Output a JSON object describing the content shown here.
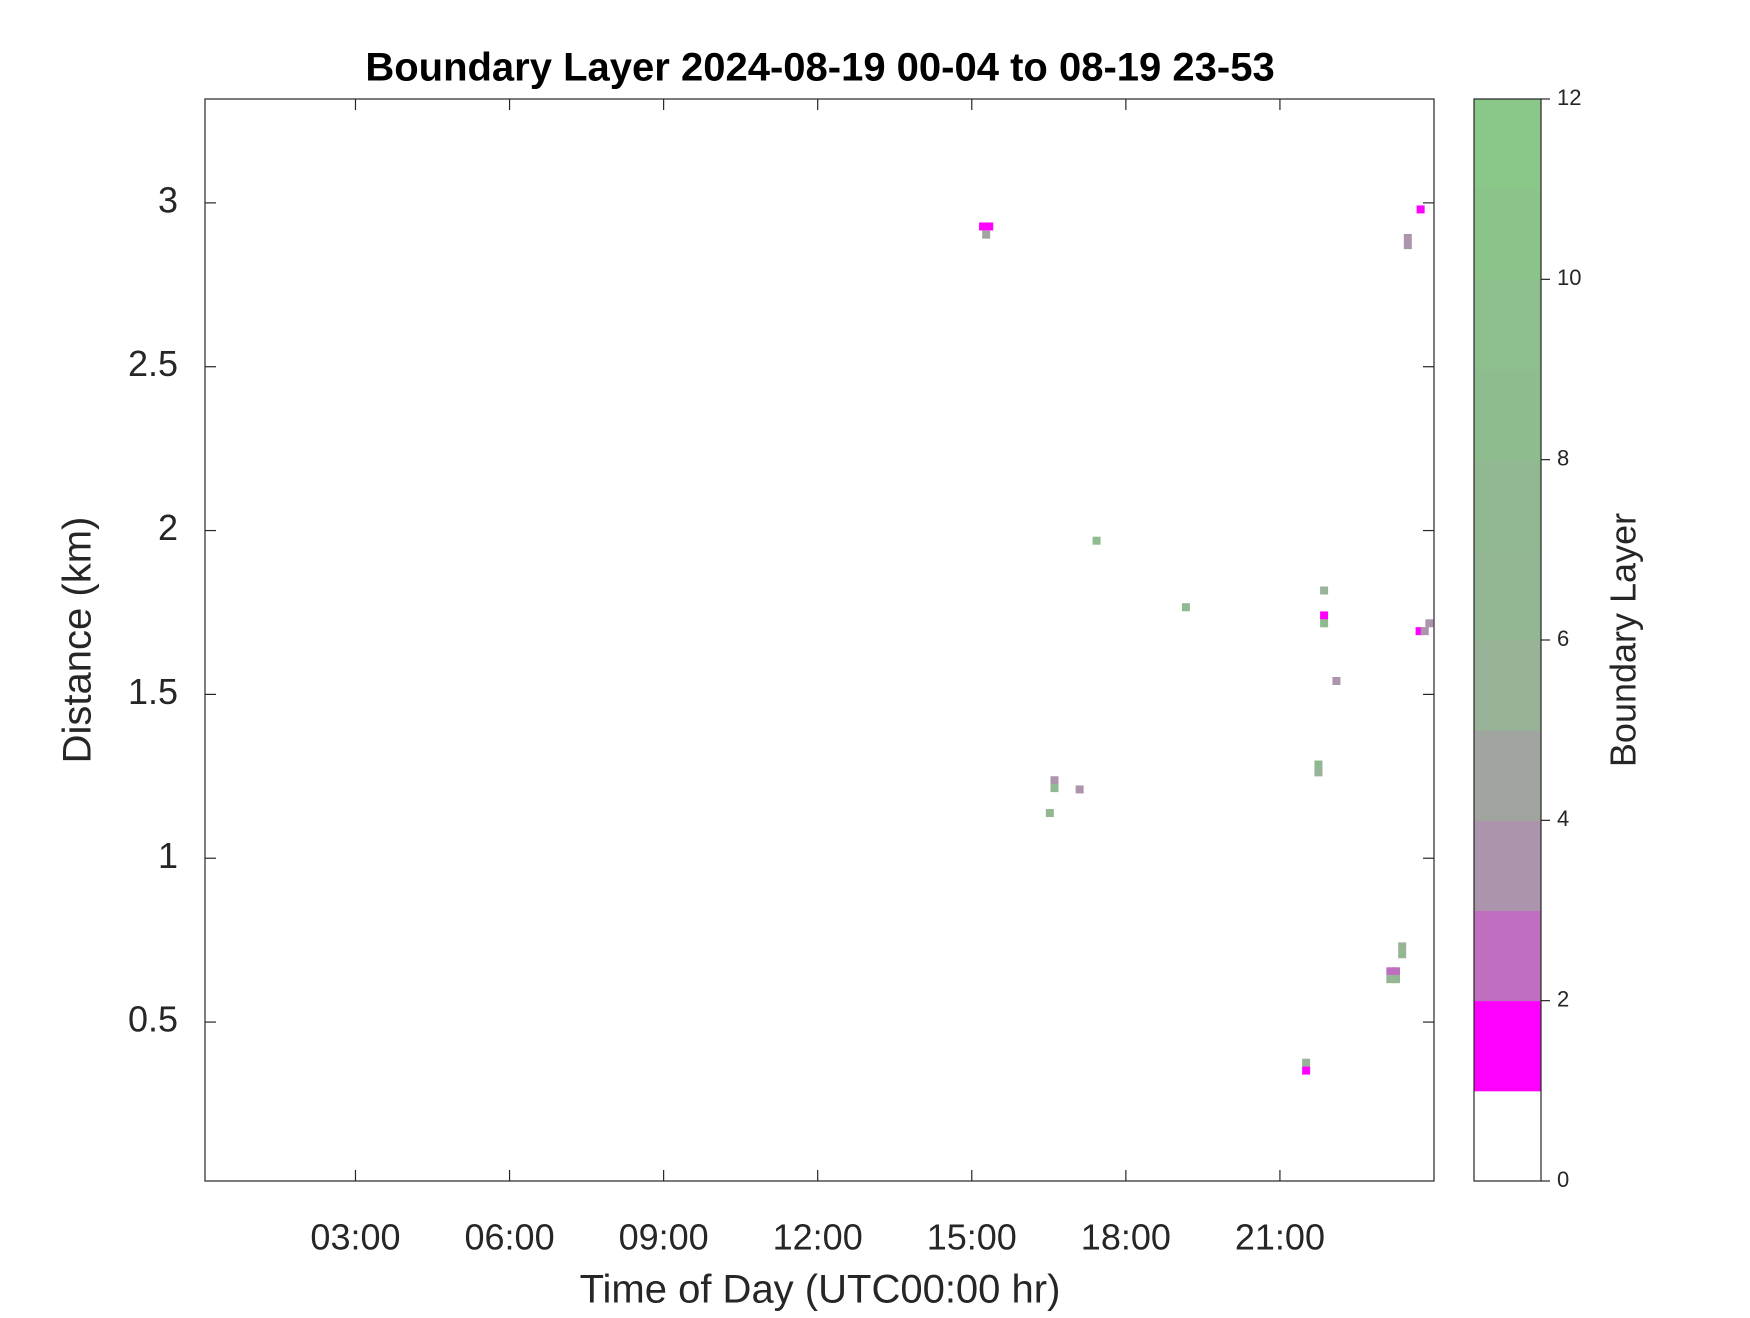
{
  "chart_data": {
    "type": "heatmap",
    "title": "Boundary Layer 2024-08-19 00-04 to 08-19 23-53",
    "x_label": "Time of Day (UTC00:00 hr)",
    "y_label": "Distance (km)",
    "xlim": [
      0.07,
      24.0
    ],
    "ylim": [
      0.015,
      3.317
    ],
    "xticks": [
      {
        "value": 3,
        "label": "03:00"
      },
      {
        "value": 6,
        "label": "06:00"
      },
      {
        "value": 9,
        "label": "09:00"
      },
      {
        "value": 12,
        "label": "12:00"
      },
      {
        "value": 15,
        "label": "15:00"
      },
      {
        "value": 18,
        "label": "18:00"
      },
      {
        "value": 21,
        "label": "21:00"
      }
    ],
    "yticks": [
      0.5,
      1,
      1.5,
      2,
      2.5,
      3
    ],
    "x": [
      15.22,
      15.34,
      15.28,
      23.74,
      23.49,
      23.49,
      17.43,
      19.17,
      21.86,
      21.86,
      21.86,
      23.72,
      23.82,
      23.91,
      22.1,
      21.75,
      21.75,
      16.61,
      16.61,
      17.1,
      16.52,
      23.38,
      23.38,
      23.15,
      23.26,
      23.15,
      23.26,
      21.51,
      21.51
    ],
    "y": [
      2.928,
      2.928,
      2.903,
      2.98,
      2.893,
      2.871,
      1.969,
      1.766,
      1.817,
      1.741,
      1.717,
      1.693,
      1.693,
      1.717,
      1.541,
      1.286,
      1.262,
      1.238,
      1.214,
      1.21,
      1.138,
      0.731,
      0.707,
      0.655,
      0.655,
      0.631,
      0.631,
      0.376,
      0.352
    ],
    "values": [
      1.5,
      1.5,
      4.5,
      1.5,
      3.5,
      3.5,
      8,
      7,
      5.5,
      1.5,
      7,
      1.5,
      3.5,
      3.5,
      3.5,
      7,
      5,
      3.5,
      7,
      3.5,
      6,
      5,
      6.5,
      2.5,
      2.5,
      6,
      6,
      5,
      1.5
    ],
    "colorbar": {
      "label": "Boundary Layer",
      "lim": [
        0,
        12
      ],
      "ticks": [
        0,
        2,
        4,
        6,
        8,
        10,
        12
      ],
      "colors": [
        "#ffffff",
        "#ff00ff",
        "#c06fc0",
        "#ac94ac",
        "#a0a5a0",
        "#98b398",
        "#93b693",
        "#91b991",
        "#8fbc8f",
        "#8dc08d",
        "#8bc48b",
        "#89c889"
      ]
    }
  }
}
